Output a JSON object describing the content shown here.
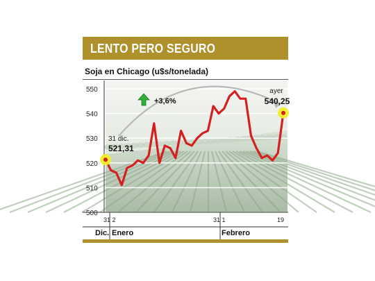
{
  "header": {
    "title": "LENTO PERO SEGURO",
    "subtitle": "Soja en Chicago (u$s/tonelada)"
  },
  "colors": {
    "banner": "#b0902a",
    "line": "#d42020",
    "highlight": "#f2ef2a",
    "arrow": "#2fae3a"
  },
  "chart_data": {
    "type": "line",
    "ylim": [
      500,
      550
    ],
    "y_ticks": [
      "500",
      "510",
      "520",
      "530",
      "540",
      "550"
    ],
    "x_ticks": [
      "31",
      "2",
      "31",
      "1",
      "19"
    ],
    "month_labels": [
      "Dic.",
      "Enero",
      "Febrero"
    ],
    "grid": true,
    "series": [
      {
        "values": [
          521.31,
          517,
          516,
          511,
          518,
          519,
          521,
          520,
          523,
          536,
          520,
          527,
          526,
          522,
          533,
          528,
          527,
          530,
          532,
          533,
          543,
          540,
          542,
          547,
          549,
          546,
          546,
          531,
          526,
          522,
          523,
          521,
          524,
          540.25
        ]
      }
    ],
    "annotations": {
      "start_label": "31 dic.",
      "start_value": "521,31",
      "end_label": "ayer",
      "end_value": "540,25",
      "change": "+3,6%"
    }
  }
}
